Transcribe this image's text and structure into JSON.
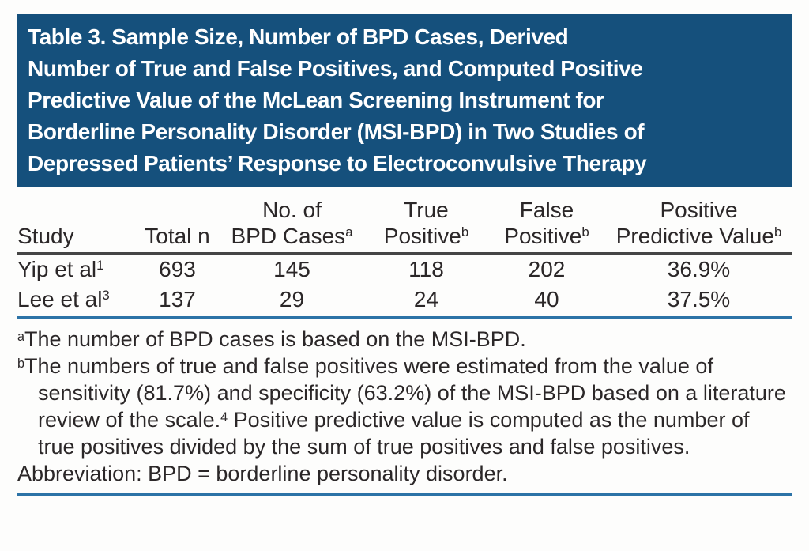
{
  "table": {
    "title": "Table 3. Sample Size, Number of BPD Cases, Derived Number of True and False Positives, and Computed Positive Predictive Value of the McLean Screening Instrument for Borderline Personality Disorder (MSI-BPD) in Two Studies of Depressed Patients’ Response to Electroconvulsive Therapy",
    "title_lines": [
      "Table 3. Sample Size, Number of BPD Cases, Derived",
      "Number of True and False Positives, and Computed Positive",
      "Predictive Value of the McLean Screening Instrument for",
      "Borderline Personality Disorder (MSI-BPD) in Two Studies of",
      "Depressed Patients’ Response to Electroconvulsive Therapy"
    ],
    "columns": [
      {
        "line1": "",
        "line2": "Study",
        "sup": ""
      },
      {
        "line1": "",
        "line2": "Total n",
        "sup": ""
      },
      {
        "line1": "No. of",
        "line2": "BPD Cases",
        "sup": "a"
      },
      {
        "line1": "True",
        "line2": "Positive",
        "sup": "b"
      },
      {
        "line1": "False",
        "line2": "Positive",
        "sup": "b"
      },
      {
        "line1": "Positive",
        "line2": "Predictive Value",
        "sup": "b"
      }
    ],
    "rows": [
      {
        "study": "Yip et al",
        "study_sup": "1",
        "total_n": "693",
        "bpd_cases": "145",
        "true_positive": "118",
        "false_positive": "202",
        "ppv": "36.9%"
      },
      {
        "study": "Lee et al",
        "study_sup": "3",
        "total_n": "137",
        "bpd_cases": "29",
        "true_positive": "24",
        "false_positive": "40",
        "ppv": "37.5%"
      }
    ],
    "footnote_a": {
      "marker": "a",
      "text": "The number of BPD cases is based on the MSI-BPD."
    },
    "footnote_b": {
      "marker": "b",
      "seg1": "The numbers of true and false positives were estimated from the value of sensitivity (81.7%) and specificity (63.2%) of the MSI-BPD based on a literature review of the scale.",
      "sup": "4",
      "seg2": " Positive predictive value is computed as the number of true positives divided by the sum of true positives and false positives."
    },
    "abbreviation": "Abbreviation: BPD = borderline personality disorder."
  },
  "colors": {
    "header_bg": "#15507c",
    "header_text": "#ffffff",
    "body_text": "#2b2728",
    "header_rule": "#454545",
    "blue_rule": "#2c73a7"
  }
}
